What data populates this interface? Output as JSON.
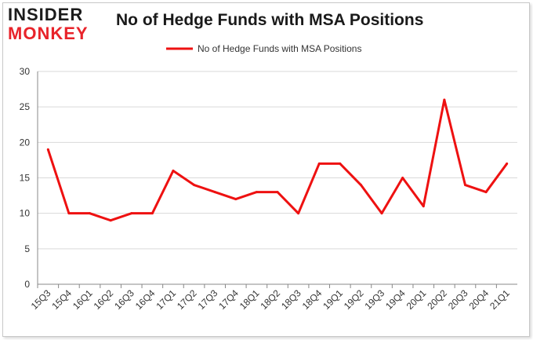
{
  "brand": {
    "line1": "INSIDER",
    "line2": "MONKEY"
  },
  "colors": {
    "series": "#ee1111",
    "grid": "#d9d9d9",
    "axis": "#888888",
    "brand_red": "#e8232a"
  },
  "chart_data": {
    "type": "line",
    "title": "No of Hedge Funds with MSA Positions",
    "xlabel": "",
    "ylabel": "",
    "categories": [
      "15Q3",
      "15Q4",
      "16Q1",
      "16Q2",
      "16Q3",
      "16Q4",
      "17Q1",
      "17Q2",
      "17Q3",
      "17Q4",
      "18Q1",
      "18Q2",
      "18Q3",
      "18Q4",
      "19Q1",
      "19Q2",
      "19Q3",
      "19Q4",
      "20Q1",
      "20Q2",
      "20Q3",
      "20Q4",
      "21Q1"
    ],
    "series": [
      {
        "name": "No of Hedge Funds with MSA Positions",
        "values": [
          19,
          10,
          10,
          9,
          10,
          10,
          16,
          14,
          13,
          12,
          13,
          13,
          10,
          17,
          17,
          14,
          10,
          15,
          11,
          26,
          14,
          13,
          17
        ]
      }
    ],
    "ylim": [
      0,
      30
    ],
    "yticks": [
      0,
      5,
      10,
      15,
      20,
      25,
      30
    ],
    "grid": true,
    "legend_position": "top-center"
  }
}
